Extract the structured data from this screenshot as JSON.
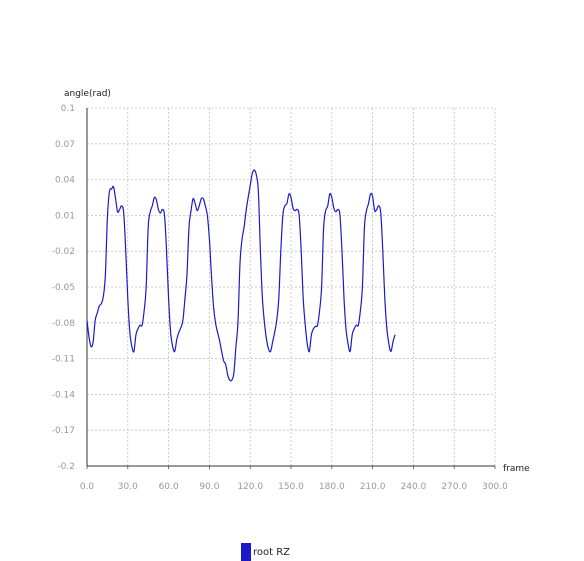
{
  "chart_data": {
    "type": "line",
    "title": "",
    "xlabel": "frame",
    "ylabel": "angle(rad)",
    "xlim": [
      0,
      300
    ],
    "ylim": [
      -0.2,
      0.1
    ],
    "x_ticks": [
      "0.0",
      "30.0",
      "60.0",
      "90.0",
      "120.0",
      "150.0",
      "180.0",
      "210.0",
      "240.0",
      "270.0",
      "300.0"
    ],
    "y_ticks": [
      "0.1",
      "0.07",
      "0.04",
      "0.01",
      "-0.02",
      "-0.05",
      "-0.08",
      "-0.11",
      "-0.14",
      "-0.17",
      "-0.2"
    ],
    "grid": true,
    "legend_position": "bottom",
    "series": [
      {
        "name": "root RZ",
        "color": "#1a1acc",
        "points": [
          [
            0,
            -0.078
          ],
          [
            1.5,
            -0.092
          ],
          [
            3,
            -0.1
          ],
          [
            4.5,
            -0.096
          ],
          [
            6,
            -0.078
          ],
          [
            7.5,
            -0.072
          ],
          [
            9,
            -0.066
          ],
          [
            10.5,
            -0.064
          ],
          [
            12,
            -0.058
          ],
          [
            13.5,
            -0.04
          ],
          [
            15,
            0.008
          ],
          [
            16.5,
            0.03
          ],
          [
            18,
            0.032
          ],
          [
            19.5,
            0.034
          ],
          [
            21,
            0.024
          ],
          [
            22.5,
            0.013
          ],
          [
            24,
            0.015
          ],
          [
            25.5,
            0.018
          ],
          [
            27,
            0.012
          ],
          [
            28.5,
            -0.02
          ],
          [
            30,
            -0.06
          ],
          [
            31.5,
            -0.088
          ],
          [
            33,
            -0.1
          ],
          [
            34.5,
            -0.104
          ],
          [
            36,
            -0.09
          ],
          [
            37.5,
            -0.085
          ],
          [
            39,
            -0.082
          ],
          [
            40.5,
            -0.082
          ],
          [
            42,
            -0.07
          ],
          [
            43.5,
            -0.05
          ],
          [
            45,
            0.0
          ],
          [
            46.5,
            0.013
          ],
          [
            48,
            0.018
          ],
          [
            49.5,
            0.025
          ],
          [
            51,
            0.023
          ],
          [
            52.5,
            0.015
          ],
          [
            54,
            0.012
          ],
          [
            55.5,
            0.015
          ],
          [
            57,
            0.01
          ],
          [
            58.5,
            -0.02
          ],
          [
            60,
            -0.06
          ],
          [
            61.5,
            -0.088
          ],
          [
            63,
            -0.1
          ],
          [
            64.5,
            -0.104
          ],
          [
            66,
            -0.094
          ],
          [
            67.5,
            -0.088
          ],
          [
            69,
            -0.084
          ],
          [
            70.5,
            -0.078
          ],
          [
            72,
            -0.06
          ],
          [
            73.5,
            -0.04
          ],
          [
            75,
            0.0
          ],
          [
            76.5,
            0.014
          ],
          [
            78,
            0.024
          ],
          [
            79.5,
            0.02
          ],
          [
            81,
            0.014
          ],
          [
            82.5,
            0.018
          ],
          [
            84,
            0.024
          ],
          [
            85.5,
            0.024
          ],
          [
            87,
            0.018
          ],
          [
            88.5,
            0.01
          ],
          [
            90,
            -0.01
          ],
          [
            91.5,
            -0.04
          ],
          [
            93,
            -0.066
          ],
          [
            94.5,
            -0.08
          ],
          [
            96,
            -0.088
          ],
          [
            97.5,
            -0.095
          ],
          [
            99,
            -0.104
          ],
          [
            100.5,
            -0.112
          ],
          [
            102,
            -0.115
          ],
          [
            103.5,
            -0.124
          ],
          [
            105,
            -0.128
          ],
          [
            106.5,
            -0.128
          ],
          [
            108,
            -0.122
          ],
          [
            109.5,
            -0.1
          ],
          [
            111,
            -0.08
          ],
          [
            112.5,
            -0.03
          ],
          [
            114,
            -0.01
          ],
          [
            115.5,
            0.0
          ],
          [
            117,
            0.014
          ],
          [
            118.5,
            0.025
          ],
          [
            120,
            0.035
          ],
          [
            121.5,
            0.045
          ],
          [
            123,
            0.048
          ],
          [
            124.5,
            0.044
          ],
          [
            126,
            0.03
          ],
          [
            127.5,
            -0.02
          ],
          [
            129,
            -0.06
          ],
          [
            130.5,
            -0.08
          ],
          [
            132,
            -0.094
          ],
          [
            133.5,
            -0.102
          ],
          [
            135,
            -0.104
          ],
          [
            136.5,
            -0.096
          ],
          [
            138,
            -0.088
          ],
          [
            139.5,
            -0.078
          ],
          [
            141,
            -0.06
          ],
          [
            142.5,
            -0.02
          ],
          [
            144,
            0.01
          ],
          [
            145.5,
            0.018
          ],
          [
            147,
            0.02
          ],
          [
            148.5,
            0.028
          ],
          [
            150,
            0.025
          ],
          [
            151.5,
            0.016
          ],
          [
            153,
            0.014
          ],
          [
            154.5,
            0.015
          ],
          [
            156,
            0.01
          ],
          [
            157.5,
            -0.02
          ],
          [
            159,
            -0.06
          ],
          [
            160.5,
            -0.082
          ],
          [
            162,
            -0.098
          ],
          [
            163.5,
            -0.104
          ],
          [
            165,
            -0.09
          ],
          [
            166.5,
            -0.085
          ],
          [
            168,
            -0.083
          ],
          [
            169.5,
            -0.082
          ],
          [
            171,
            -0.07
          ],
          [
            172.5,
            -0.05
          ],
          [
            174,
            0.0
          ],
          [
            175.5,
            0.014
          ],
          [
            177,
            0.018
          ],
          [
            178.5,
            0.028
          ],
          [
            180,
            0.025
          ],
          [
            181.5,
            0.016
          ],
          [
            183,
            0.013
          ],
          [
            184.5,
            0.015
          ],
          [
            186,
            0.01
          ],
          [
            187.5,
            -0.02
          ],
          [
            189,
            -0.06
          ],
          [
            190.5,
            -0.086
          ],
          [
            192,
            -0.098
          ],
          [
            193.5,
            -0.104
          ],
          [
            195,
            -0.09
          ],
          [
            196.5,
            -0.085
          ],
          [
            198,
            -0.082
          ],
          [
            199.5,
            -0.082
          ],
          [
            201,
            -0.07
          ],
          [
            202.5,
            -0.05
          ],
          [
            204,
            0.0
          ],
          [
            205.5,
            0.014
          ],
          [
            207,
            0.02
          ],
          [
            208.5,
            0.028
          ],
          [
            210,
            0.026
          ],
          [
            211.5,
            0.014
          ],
          [
            213,
            0.015
          ],
          [
            214.5,
            0.018
          ],
          [
            216,
            0.012
          ],
          [
            217.5,
            -0.02
          ],
          [
            219,
            -0.06
          ],
          [
            220.5,
            -0.085
          ],
          [
            222,
            -0.098
          ],
          [
            223.5,
            -0.104
          ],
          [
            225,
            -0.096
          ],
          [
            226.5,
            -0.09
          ]
        ]
      }
    ]
  }
}
